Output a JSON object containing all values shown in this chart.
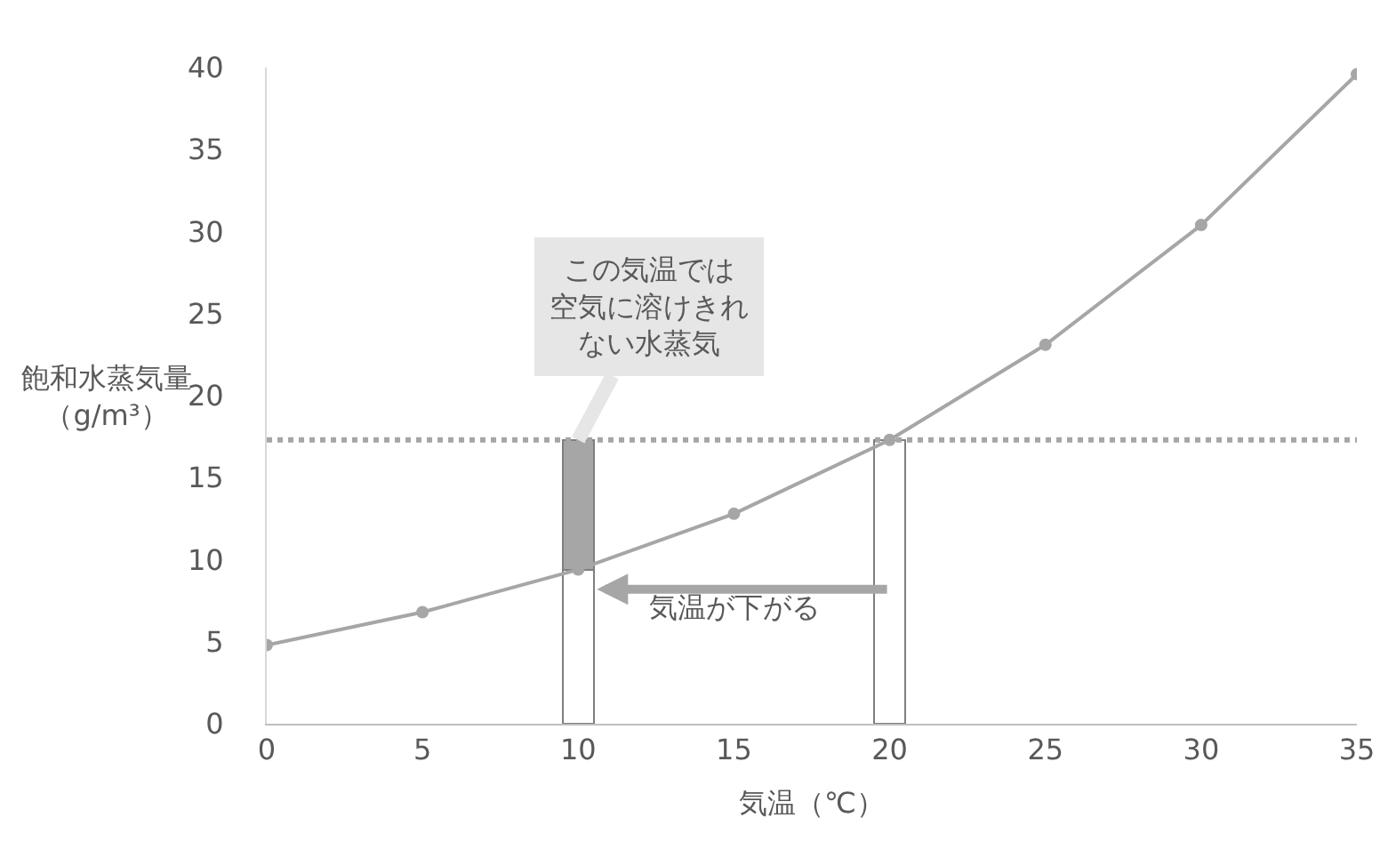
{
  "chart_data": {
    "type": "line",
    "xlabel": "気温（℃）",
    "ylabel": "飽和水蒸気量（g/m³）",
    "xlim": [
      0,
      35
    ],
    "ylim": [
      0,
      40
    ],
    "xticks": [
      0,
      5,
      10,
      15,
      20,
      25,
      30,
      35
    ],
    "yticks": [
      0,
      5,
      10,
      15,
      20,
      25,
      30,
      35,
      40
    ],
    "stacked": true,
    "series": [
      {
        "type": "bar",
        "x": [
          10,
          20
        ],
        "values": [
          9.4,
          17.3
        ],
        "color": "#ffffff"
      },
      {
        "type": "bar",
        "x": [
          10
        ],
        "values": [
          7.9
        ],
        "color": "#a6a6a6"
      },
      {
        "x": [
          0,
          5,
          10,
          15,
          20,
          25,
          30,
          35
        ],
        "values": [
          4.8,
          6.8,
          9.4,
          12.8,
          17.3,
          23.1,
          30.4,
          39.6
        ],
        "color": "#a6a6a6",
        "marker": "circle",
        "line_style": "solid"
      }
    ],
    "ref_lines": [
      {
        "axis": "y",
        "value": 17.3,
        "color": "#a6a6a6",
        "line_style": "dotted"
      }
    ],
    "annotations": [
      {
        "text": "この気温では空気に溶けきれない水蒸気",
        "x": 10,
        "y": 17.3
      },
      "気温が下がる"
    ]
  }
}
